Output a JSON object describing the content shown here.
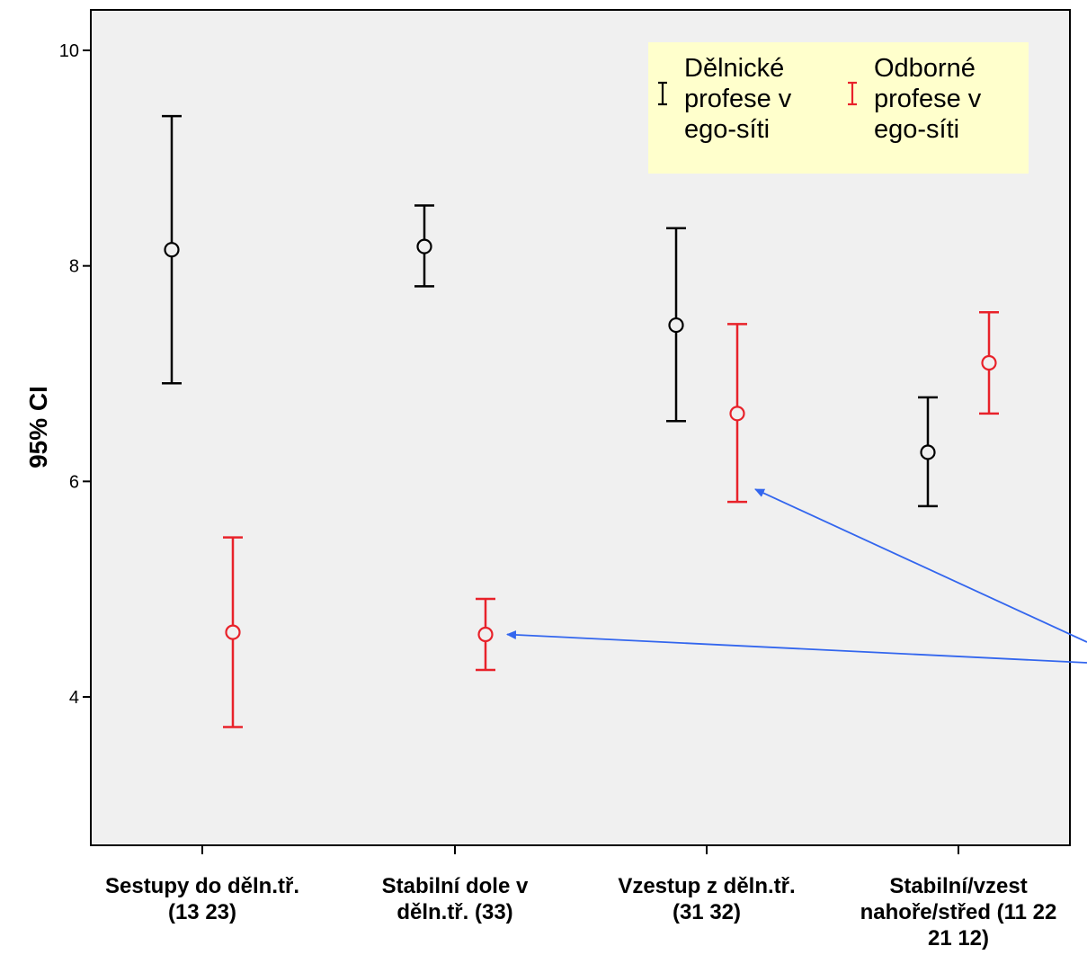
{
  "chart_data": {
    "type": "errorbar",
    "ylabel": "95% CI",
    "ylim": [
      2.7,
      10.4
    ],
    "yticks": [
      4,
      6,
      8,
      10
    ],
    "grid": false,
    "legend_position": "top-right",
    "categories": [
      [
        "Sestupy do děln.tř.",
        "(13 23)"
      ],
      [
        "Stabilní dole v",
        "děln.tř. (33)"
      ],
      [
        "Vzestup z děln.tř.",
        "(31 32)"
      ],
      [
        "Stabilní/vzest",
        "nahoře/střed (11 22",
        "21 12)"
      ]
    ],
    "series": [
      {
        "name": [
          "Dělnické",
          "profese v",
          "ego-síti"
        ],
        "color": "#000000",
        "mean": [
          8.15,
          8.18,
          7.45,
          6.27
        ],
        "lower": [
          6.91,
          7.81,
          6.56,
          5.77
        ],
        "upper": [
          9.39,
          8.56,
          8.35,
          6.78
        ]
      },
      {
        "name": [
          "Odborné",
          "profese v",
          "ego-síti"
        ],
        "color": "#e8222a",
        "mean": [
          4.6,
          4.58,
          6.63,
          7.1
        ],
        "lower": [
          3.72,
          4.25,
          5.81,
          6.63
        ],
        "upper": [
          5.48,
          4.91,
          7.46,
          7.57
        ]
      }
    ],
    "annotation_arrows": {
      "color": "#3366ee",
      "target_series": 1,
      "target_categories": [
        1,
        2
      ]
    },
    "colors": {
      "plot_background": "#f0f0f0",
      "legend_background": "#ffffcc"
    }
  }
}
